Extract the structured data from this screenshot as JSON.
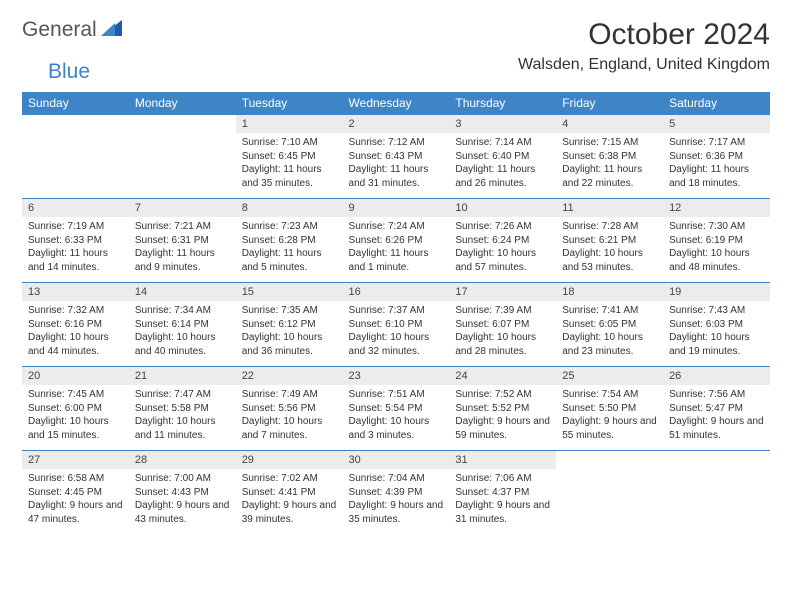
{
  "logo": {
    "part1": "General",
    "part2": "Blue"
  },
  "title": "October 2024",
  "location": "Walsden, England, United Kingdom",
  "colors": {
    "header_bg": "#3d85c6",
    "header_text": "#ffffff",
    "daynum_bg": "#ececec",
    "border": "#3d85c6",
    "text": "#333333"
  },
  "days": [
    "Sunday",
    "Monday",
    "Tuesday",
    "Wednesday",
    "Thursday",
    "Friday",
    "Saturday"
  ],
  "weeks": [
    [
      null,
      null,
      {
        "n": "1",
        "sr": "Sunrise: 7:10 AM",
        "ss": "Sunset: 6:45 PM",
        "dl": "Daylight: 11 hours and 35 minutes."
      },
      {
        "n": "2",
        "sr": "Sunrise: 7:12 AM",
        "ss": "Sunset: 6:43 PM",
        "dl": "Daylight: 11 hours and 31 minutes."
      },
      {
        "n": "3",
        "sr": "Sunrise: 7:14 AM",
        "ss": "Sunset: 6:40 PM",
        "dl": "Daylight: 11 hours and 26 minutes."
      },
      {
        "n": "4",
        "sr": "Sunrise: 7:15 AM",
        "ss": "Sunset: 6:38 PM",
        "dl": "Daylight: 11 hours and 22 minutes."
      },
      {
        "n": "5",
        "sr": "Sunrise: 7:17 AM",
        "ss": "Sunset: 6:36 PM",
        "dl": "Daylight: 11 hours and 18 minutes."
      }
    ],
    [
      {
        "n": "6",
        "sr": "Sunrise: 7:19 AM",
        "ss": "Sunset: 6:33 PM",
        "dl": "Daylight: 11 hours and 14 minutes."
      },
      {
        "n": "7",
        "sr": "Sunrise: 7:21 AM",
        "ss": "Sunset: 6:31 PM",
        "dl": "Daylight: 11 hours and 9 minutes."
      },
      {
        "n": "8",
        "sr": "Sunrise: 7:23 AM",
        "ss": "Sunset: 6:28 PM",
        "dl": "Daylight: 11 hours and 5 minutes."
      },
      {
        "n": "9",
        "sr": "Sunrise: 7:24 AM",
        "ss": "Sunset: 6:26 PM",
        "dl": "Daylight: 11 hours and 1 minute."
      },
      {
        "n": "10",
        "sr": "Sunrise: 7:26 AM",
        "ss": "Sunset: 6:24 PM",
        "dl": "Daylight: 10 hours and 57 minutes."
      },
      {
        "n": "11",
        "sr": "Sunrise: 7:28 AM",
        "ss": "Sunset: 6:21 PM",
        "dl": "Daylight: 10 hours and 53 minutes."
      },
      {
        "n": "12",
        "sr": "Sunrise: 7:30 AM",
        "ss": "Sunset: 6:19 PM",
        "dl": "Daylight: 10 hours and 48 minutes."
      }
    ],
    [
      {
        "n": "13",
        "sr": "Sunrise: 7:32 AM",
        "ss": "Sunset: 6:16 PM",
        "dl": "Daylight: 10 hours and 44 minutes."
      },
      {
        "n": "14",
        "sr": "Sunrise: 7:34 AM",
        "ss": "Sunset: 6:14 PM",
        "dl": "Daylight: 10 hours and 40 minutes."
      },
      {
        "n": "15",
        "sr": "Sunrise: 7:35 AM",
        "ss": "Sunset: 6:12 PM",
        "dl": "Daylight: 10 hours and 36 minutes."
      },
      {
        "n": "16",
        "sr": "Sunrise: 7:37 AM",
        "ss": "Sunset: 6:10 PM",
        "dl": "Daylight: 10 hours and 32 minutes."
      },
      {
        "n": "17",
        "sr": "Sunrise: 7:39 AM",
        "ss": "Sunset: 6:07 PM",
        "dl": "Daylight: 10 hours and 28 minutes."
      },
      {
        "n": "18",
        "sr": "Sunrise: 7:41 AM",
        "ss": "Sunset: 6:05 PM",
        "dl": "Daylight: 10 hours and 23 minutes."
      },
      {
        "n": "19",
        "sr": "Sunrise: 7:43 AM",
        "ss": "Sunset: 6:03 PM",
        "dl": "Daylight: 10 hours and 19 minutes."
      }
    ],
    [
      {
        "n": "20",
        "sr": "Sunrise: 7:45 AM",
        "ss": "Sunset: 6:00 PM",
        "dl": "Daylight: 10 hours and 15 minutes."
      },
      {
        "n": "21",
        "sr": "Sunrise: 7:47 AM",
        "ss": "Sunset: 5:58 PM",
        "dl": "Daylight: 10 hours and 11 minutes."
      },
      {
        "n": "22",
        "sr": "Sunrise: 7:49 AM",
        "ss": "Sunset: 5:56 PM",
        "dl": "Daylight: 10 hours and 7 minutes."
      },
      {
        "n": "23",
        "sr": "Sunrise: 7:51 AM",
        "ss": "Sunset: 5:54 PM",
        "dl": "Daylight: 10 hours and 3 minutes."
      },
      {
        "n": "24",
        "sr": "Sunrise: 7:52 AM",
        "ss": "Sunset: 5:52 PM",
        "dl": "Daylight: 9 hours and 59 minutes."
      },
      {
        "n": "25",
        "sr": "Sunrise: 7:54 AM",
        "ss": "Sunset: 5:50 PM",
        "dl": "Daylight: 9 hours and 55 minutes."
      },
      {
        "n": "26",
        "sr": "Sunrise: 7:56 AM",
        "ss": "Sunset: 5:47 PM",
        "dl": "Daylight: 9 hours and 51 minutes."
      }
    ],
    [
      {
        "n": "27",
        "sr": "Sunrise: 6:58 AM",
        "ss": "Sunset: 4:45 PM",
        "dl": "Daylight: 9 hours and 47 minutes."
      },
      {
        "n": "28",
        "sr": "Sunrise: 7:00 AM",
        "ss": "Sunset: 4:43 PM",
        "dl": "Daylight: 9 hours and 43 minutes."
      },
      {
        "n": "29",
        "sr": "Sunrise: 7:02 AM",
        "ss": "Sunset: 4:41 PM",
        "dl": "Daylight: 9 hours and 39 minutes."
      },
      {
        "n": "30",
        "sr": "Sunrise: 7:04 AM",
        "ss": "Sunset: 4:39 PM",
        "dl": "Daylight: 9 hours and 35 minutes."
      },
      {
        "n": "31",
        "sr": "Sunrise: 7:06 AM",
        "ss": "Sunset: 4:37 PM",
        "dl": "Daylight: 9 hours and 31 minutes."
      },
      null,
      null
    ]
  ]
}
